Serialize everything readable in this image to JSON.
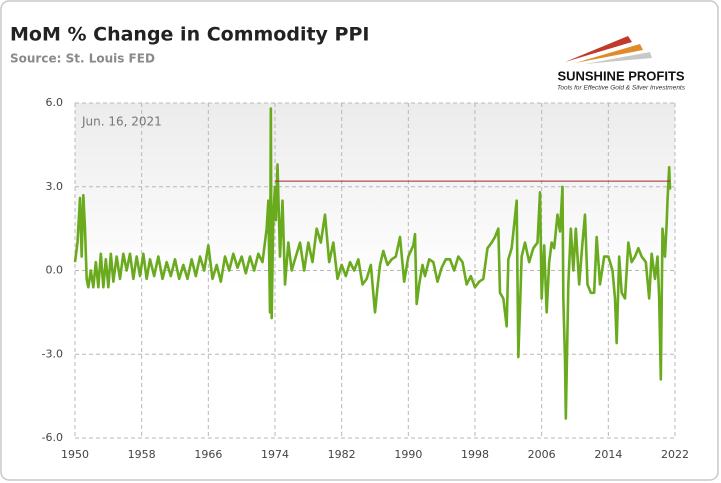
{
  "chart_data": {
    "type": "line",
    "title": "MoM % Change in Commodity PPI",
    "subtitle": "Source: St. Louis FED",
    "annotation": "Jun. 16, 2021",
    "xlim": [
      1950,
      2022
    ],
    "xticks": [
      1950,
      1958,
      1966,
      1974,
      1982,
      1990,
      1998,
      2006,
      2014,
      2022
    ],
    "ylim": [
      -6,
      6
    ],
    "yticks": [
      {
        "value": 6,
        "label": "6.0"
      },
      {
        "value": 3,
        "label": "3.0"
      },
      {
        "value": 0,
        "label": "0.0"
      },
      {
        "value": -3,
        "label": "-3.0"
      },
      {
        "value": -6,
        "label": "-6.0"
      }
    ],
    "grid": true,
    "reference_line": {
      "value": 3.2,
      "x_start": 1974,
      "x_end": 2021.4,
      "color": "#a0282d"
    },
    "color": "#6aaa1e",
    "x": [
      1950,
      1950.3,
      1950.6,
      1950.8,
      1951.0,
      1951.2,
      1951.4,
      1951.6,
      1951.9,
      1952.2,
      1952.5,
      1952.8,
      1953.1,
      1953.4,
      1953.7,
      1954.0,
      1954.3,
      1954.6,
      1955.0,
      1955.4,
      1955.8,
      1956.2,
      1956.6,
      1957.0,
      1957.4,
      1957.8,
      1958.2,
      1958.6,
      1959.0,
      1959.5,
      1960.0,
      1960.5,
      1961.0,
      1961.5,
      1962.0,
      1962.5,
      1963.0,
      1963.5,
      1964.0,
      1964.5,
      1965.0,
      1965.5,
      1966.0,
      1966.5,
      1967.0,
      1967.5,
      1968.0,
      1968.5,
      1969.0,
      1969.5,
      1970.0,
      1970.5,
      1971.0,
      1971.5,
      1972.0,
      1972.5,
      1973.0,
      1973.2,
      1973.4,
      1973.5,
      1973.6,
      1973.8,
      1974.0,
      1974.1,
      1974.3,
      1974.6,
      1974.9,
      1975.2,
      1975.6,
      1976.0,
      1976.5,
      1977.0,
      1977.5,
      1978.0,
      1978.5,
      1979.0,
      1979.5,
      1980.0,
      1980.5,
      1981.0,
      1981.5,
      1982.0,
      1982.5,
      1983.0,
      1983.5,
      1984.0,
      1984.5,
      1985.0,
      1985.5,
      1986.0,
      1986.3,
      1986.6,
      1987.0,
      1987.5,
      1988.0,
      1988.5,
      1989.0,
      1989.5,
      1990.0,
      1990.6,
      1990.8,
      1991.0,
      1991.3,
      1991.7,
      1992.0,
      1992.5,
      1993.0,
      1993.5,
      1994.0,
      1994.5,
      1995.0,
      1995.5,
      1996.0,
      1996.5,
      1997.0,
      1997.5,
      1998.0,
      1998.5,
      1999.0,
      1999.5,
      2000.0,
      2000.4,
      2000.8,
      2001.0,
      2001.4,
      2001.8,
      2002.0,
      2002.4,
      2003.0,
      2003.2,
      2003.6,
      2004.0,
      2004.5,
      2005.0,
      2005.5,
      2005.8,
      2006.0,
      2006.3,
      2006.6,
      2006.9,
      2007.2,
      2007.5,
      2007.9,
      2008.2,
      2008.5,
      2008.6,
      2008.8,
      2008.9,
      2009.2,
      2009.5,
      2009.8,
      2010.1,
      2010.5,
      2010.9,
      2011.2,
      2011.5,
      2011.9,
      2012.3,
      2012.6,
      2013.0,
      2013.5,
      2014.0,
      2014.5,
      2014.8,
      2015.0,
      2015.3,
      2015.6,
      2016.0,
      2016.4,
      2016.8,
      2017.2,
      2017.6,
      2018.0,
      2018.5,
      2018.9,
      2019.2,
      2019.6,
      2019.9,
      2020.1,
      2020.3,
      2020.5,
      2020.8,
      2021.0,
      2021.1,
      2021.3,
      2021.4
    ],
    "values": [
      0.3,
      1.0,
      2.6,
      0.5,
      2.7,
      1.5,
      -0.3,
      -0.6,
      0.0,
      -0.6,
      0.3,
      -0.6,
      0.6,
      -0.6,
      0.4,
      -0.6,
      0.6,
      -0.4,
      0.5,
      -0.3,
      0.6,
      0.0,
      0.6,
      -0.3,
      0.5,
      -0.2,
      0.6,
      -0.3,
      0.4,
      -0.2,
      0.5,
      -0.3,
      0.3,
      -0.2,
      0.4,
      -0.3,
      0.2,
      -0.3,
      0.4,
      -0.2,
      0.5,
      0.0,
      0.9,
      -0.3,
      0.2,
      -0.4,
      0.5,
      0.0,
      0.6,
      0.1,
      0.5,
      -0.1,
      0.5,
      0.0,
      0.6,
      0.3,
      1.5,
      2.5,
      -1.5,
      5.8,
      -1.7,
      2.0,
      3.0,
      1.8,
      3.8,
      0.5,
      2.5,
      -0.5,
      1.0,
      0.0,
      0.5,
      1.0,
      0.0,
      1.0,
      0.3,
      1.5,
      1.0,
      2.0,
      0.3,
      1.0,
      -0.3,
      0.2,
      -0.2,
      0.3,
      0.0,
      0.4,
      -0.5,
      -0.3,
      0.2,
      -1.5,
      -0.6,
      0.2,
      0.7,
      0.2,
      0.4,
      0.5,
      1.2,
      -0.4,
      0.5,
      0.9,
      1.3,
      -1.2,
      -0.5,
      0.2,
      -0.2,
      0.4,
      0.3,
      -0.4,
      0.1,
      0.4,
      0.4,
      0.0,
      0.5,
      0.3,
      -0.5,
      -0.2,
      -0.6,
      -0.4,
      -0.3,
      0.8,
      1.0,
      1.2,
      1.5,
      -0.8,
      -1.0,
      -2.0,
      0.4,
      0.8,
      2.5,
      -3.1,
      0.5,
      1.0,
      0.3,
      0.8,
      1.0,
      2.8,
      -1.0,
      0.9,
      -1.5,
      0.3,
      1.0,
      0.8,
      2.0,
      1.4,
      3.0,
      -1.0,
      -3.2,
      -5.3,
      -0.5,
      1.5,
      0.0,
      1.5,
      -0.5,
      1.0,
      2.0,
      -0.5,
      -0.8,
      -0.8,
      1.2,
      -0.5,
      0.5,
      0.5,
      0.0,
      -1.0,
      -2.6,
      0.5,
      -0.8,
      -1.0,
      1.0,
      0.3,
      0.5,
      0.8,
      0.5,
      0.3,
      -1.0,
      0.6,
      -0.3,
      0.5,
      -1.0,
      -3.9,
      1.5,
      0.5,
      1.7,
      2.5,
      3.7,
      2.9
    ]
  },
  "logo": {
    "name": "SUNSHINE PROFITS",
    "tagline": "Tools for Effective Gold & Silver Investments"
  }
}
